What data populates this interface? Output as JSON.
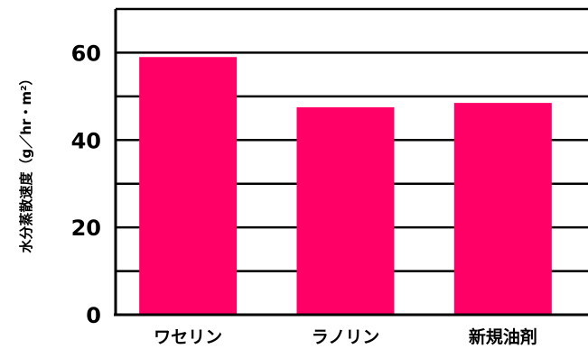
{
  "chart_data": {
    "type": "bar",
    "title": "",
    "xlabel": "",
    "ylabel": "水分蒸散速度（g／hr・m²）",
    "categories": [
      "ワセリン",
      "ラノリン",
      "新規油剤"
    ],
    "values": [
      59,
      47.5,
      48.5
    ],
    "ylim": [
      0,
      70
    ],
    "yticks": [
      "0",
      "20",
      "40",
      "60"
    ],
    "grid": true,
    "bar_color": "#ff0066"
  }
}
